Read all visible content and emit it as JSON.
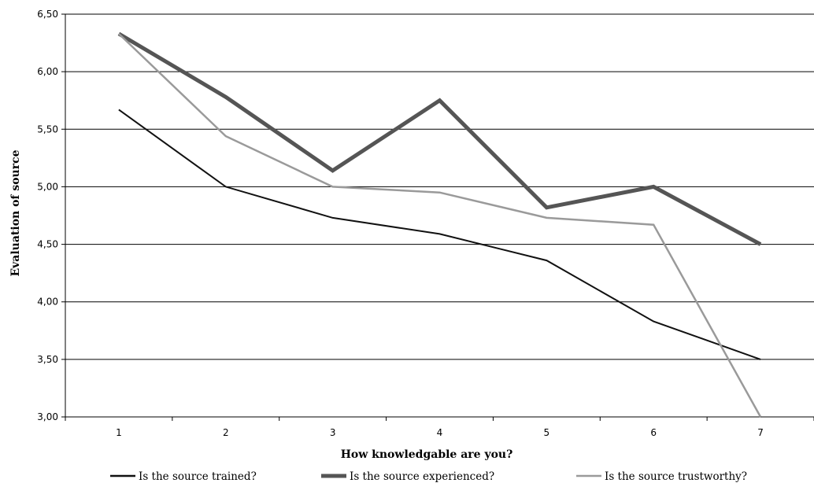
{
  "chart_data": {
    "type": "line",
    "title": "",
    "xlabel": "How knowledgable are you?",
    "ylabel": "Evaluation of source",
    "categories": [
      "1",
      "2",
      "3",
      "4",
      "5",
      "6",
      "7"
    ],
    "ylim": [
      3.0,
      6.5
    ],
    "yticks": [
      "3,00",
      "3,50",
      "4,00",
      "4,50",
      "5,00",
      "5,50",
      "6,00",
      "6,50"
    ],
    "ytick_values": [
      3.0,
      3.5,
      4.0,
      4.5,
      5.0,
      5.5,
      6.0,
      6.5
    ],
    "grid": "horizontal",
    "legend_position": "bottom",
    "series": [
      {
        "name": "Is the source trained?",
        "color": "#111111",
        "values": [
          5.67,
          5.0,
          4.73,
          4.59,
          4.36,
          3.83,
          3.5
        ]
      },
      {
        "name": "Is the source experienced?",
        "color": "#555555",
        "values": [
          6.33,
          5.78,
          5.14,
          5.75,
          4.82,
          5.0,
          4.5
        ]
      },
      {
        "name": "Is the source trustworthy?",
        "color": "#9a9a9a",
        "values": [
          6.33,
          5.44,
          5.0,
          4.95,
          4.73,
          4.67,
          3.0
        ]
      }
    ]
  }
}
